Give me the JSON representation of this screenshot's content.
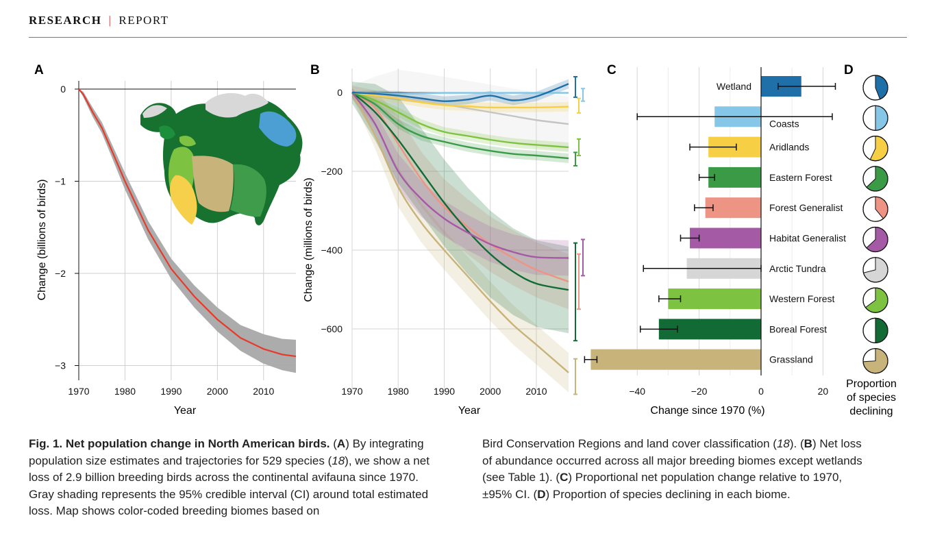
{
  "header": {
    "section": "RESEARCH",
    "separator": "|",
    "type": "REPORT"
  },
  "panels": {
    "a": "A",
    "b": "B",
    "c": "C",
    "d": "D"
  },
  "colors": {
    "wetland": "#1f6fa8",
    "coasts": "#86c6e6",
    "aridlands": "#f7cf45",
    "eastern_forest": "#3a9a46",
    "forest_generalist": "#ee9485",
    "habitat_generalist": "#a55aa6",
    "arctic_tundra": "#d6d6d6",
    "western_forest": "#7ec242",
    "boreal_forest": "#126b34",
    "grassland": "#c8b47a",
    "total_line": "#e53b2b",
    "total_ci": "#a8a8a8"
  },
  "chart_data": [
    {
      "type": "line",
      "panel": "A",
      "xlabel": "Year",
      "ylabel": "Change (billions of birds)",
      "xlim": [
        1970,
        2017
      ],
      "ylim": [
        -3.1,
        0.05
      ],
      "xticks": [
        "1970",
        "1980",
        "1990",
        "2000",
        "2010"
      ],
      "yticks": [
        "0",
        "−1",
        "−2",
        "−3"
      ],
      "grid": true,
      "x": [
        1970,
        1971,
        1973,
        1975,
        1977,
        1980,
        1985,
        1990,
        1995,
        2000,
        2005,
        2010,
        2014,
        2017
      ],
      "series": [
        {
          "values": [
            0,
            -0.06,
            -0.25,
            -0.42,
            -0.65,
            -1.0,
            -1.53,
            -1.95,
            -2.25,
            -2.5,
            -2.7,
            -2.82,
            -2.88,
            -2.9
          ]
        }
      ],
      "ci_halfwidth": [
        0,
        0.03,
        0.05,
        0.06,
        0.07,
        0.09,
        0.1,
        0.11,
        0.12,
        0.13,
        0.14,
        0.16,
        0.17,
        0.18
      ],
      "inset": "map of North American breeding biomes"
    },
    {
      "type": "line",
      "panel": "B",
      "xlabel": "Year",
      "ylabel": "Change (millions of birds)",
      "xlim": [
        1970,
        2017
      ],
      "ylim": [
        -740,
        50
      ],
      "xticks": [
        "1970",
        "1980",
        "1990",
        "2000",
        "2010"
      ],
      "yticks": [
        "0",
        "−200",
        "−400",
        "−600"
      ],
      "grid": true,
      "x": [
        1970,
        1975,
        1980,
        1985,
        1990,
        1995,
        2000,
        2005,
        2010,
        2017
      ],
      "series": [
        {
          "biome": "wetland",
          "values": [
            0,
            -3,
            -8,
            -15,
            -22,
            -18,
            -8,
            -20,
            -10,
            22
          ]
        },
        {
          "biome": "coasts",
          "values": [
            0,
            -2,
            -3,
            -2,
            -1,
            -1,
            -1,
            -1,
            -1,
            -1
          ]
        },
        {
          "biome": "aridlands",
          "values": [
            0,
            -8,
            -15,
            -25,
            -32,
            -35,
            -38,
            -38,
            -38,
            -36
          ]
        },
        {
          "biome": "arctic_tundra",
          "values": [
            0,
            -5,
            -12,
            -20,
            -30,
            -40,
            -50,
            -60,
            -70,
            -80
          ]
        },
        {
          "biome": "western_forest",
          "values": [
            0,
            -20,
            -50,
            -80,
            -100,
            -110,
            -120,
            -128,
            -133,
            -139
          ]
        },
        {
          "biome": "eastern_forest",
          "values": [
            0,
            -30,
            -80,
            -110,
            -125,
            -138,
            -148,
            -156,
            -160,
            -167
          ]
        },
        {
          "biome": "habitat_generalist",
          "values": [
            0,
            -80,
            -200,
            -270,
            -320,
            -355,
            -385,
            -405,
            -418,
            -420
          ]
        },
        {
          "biome": "forest_generalist",
          "values": [
            0,
            -40,
            -130,
            -220,
            -290,
            -340,
            -385,
            -420,
            -450,
            -480
          ]
        },
        {
          "biome": "boreal_forest",
          "values": [
            0,
            -50,
            -120,
            -200,
            -280,
            -350,
            -410,
            -455,
            -485,
            -501
          ]
        },
        {
          "biome": "grassland",
          "values": [
            0,
            -110,
            -240,
            -330,
            -400,
            -465,
            -530,
            -590,
            -640,
            -711
          ]
        }
      ],
      "ci_brackets": [
        {
          "biome": "wetland",
          "range": [
            -12,
            40
          ]
        },
        {
          "biome": "coasts",
          "range": [
            -22,
            10
          ]
        },
        {
          "biome": "aridlands",
          "range": [
            -52,
            -15
          ]
        },
        {
          "biome": "western_forest",
          "range": [
            -160,
            -118
          ]
        },
        {
          "biome": "eastern_forest",
          "range": [
            -186,
            -152
          ]
        },
        {
          "biome": "habitat_generalist",
          "range": [
            -465,
            -373
          ]
        },
        {
          "biome": "forest_generalist",
          "range": [
            -550,
            -410
          ]
        },
        {
          "biome": "boreal_forest",
          "range": [
            -630,
            -382
          ]
        },
        {
          "biome": "grassland",
          "range": [
            -766,
            -676
          ]
        }
      ]
    },
    {
      "type": "bar",
      "panel": "C",
      "orientation": "horizontal",
      "xlabel": "Change since 1970 (%)",
      "xlim": [
        -55,
        22
      ],
      "xticks": [
        "−40",
        "−20",
        "0",
        "20"
      ],
      "grid": true,
      "categories": [
        "Wetland",
        "Coasts",
        "Aridlands",
        "Eastern Forest",
        "Forest Generalist",
        "Habitat Generalist",
        "Arctic Tundra",
        "Western Forest",
        "Boreal Forest",
        "Grassland"
      ],
      "values": [
        13,
        -15,
        -17,
        -17,
        -18,
        -23,
        -24,
        -30,
        -33,
        -55
      ],
      "ci_low": [
        5.5,
        -40,
        -23,
        -20,
        -21.5,
        -26,
        -38,
        -33,
        -39,
        -57
      ],
      "ci_high": [
        24,
        23,
        -8,
        -15,
        -15.5,
        -20,
        0,
        -26,
        -27,
        -53
      ]
    },
    {
      "type": "pie",
      "panel": "D",
      "title": "Proportion of species declining",
      "categories": [
        "Wetland",
        "Coasts",
        "Aridlands",
        "Eastern Forest",
        "Forest Generalist",
        "Habitat Generalist",
        "Arctic Tundra",
        "Western Forest",
        "Boreal Forest",
        "Grassland"
      ],
      "values": [
        0.44,
        0.5,
        0.57,
        0.63,
        0.39,
        0.63,
        0.71,
        0.65,
        0.5,
        0.74
      ]
    }
  ],
  "labels": {
    "a_ylabel": "Change (billions of birds)",
    "a_xlabel": "Year",
    "b_ylabel": "Change (millions of birds)",
    "b_xlabel": "Year",
    "c_xlabel": "Change since 1970 (%)",
    "d_title_1": "Proportion",
    "d_title_2": "of species",
    "d_title_3": "declining"
  },
  "caption": {
    "title": "Fig. 1. Net population change in North American birds.",
    "text": "(A) By integrating population size estimates and trajectories for 529 species (18), we show a net loss of 2.9 billion breeding birds across the continental avifauna since 1970. Gray shading represents the 95% credible interval (CI) around total estimated loss. Map shows color-coded breeding biomes based on Bird Conservation Regions and land cover classification (18). (B) Net loss of abundance occurred across all major breeding biomes except wetlands (see Table 1). (C) Proportional net population change relative to 1970, ±95% CI. (D) Proportion of species declining in each biome."
  }
}
